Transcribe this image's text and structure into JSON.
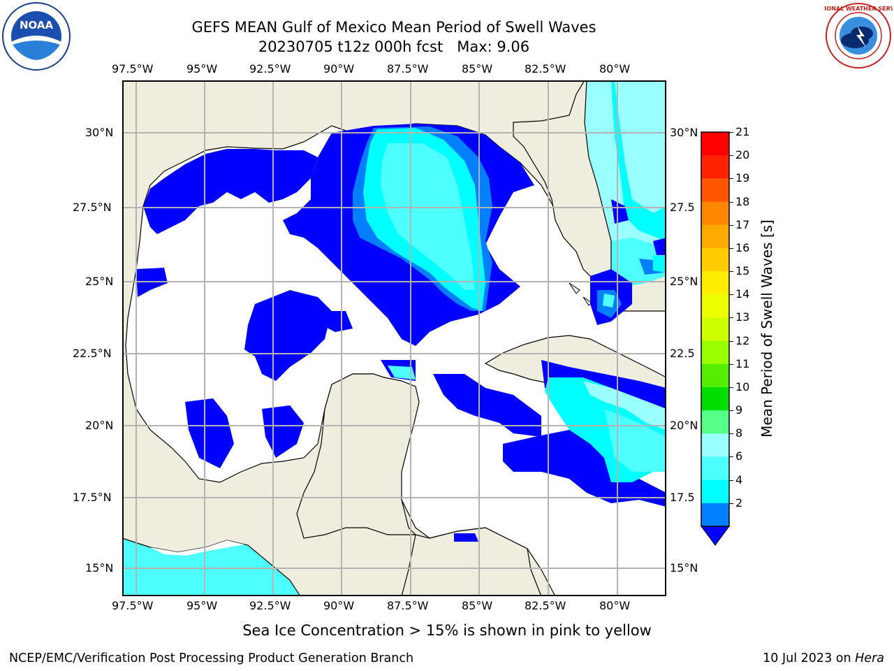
{
  "header": {
    "title_line1": "GEFS MEAN Gulf of Mexico Mean Period of Swell Waves",
    "title_line2": "20230705 t12z 000h fcst   Max: 9.06"
  },
  "logos": {
    "noaa_text": "NOAA",
    "noaa_ring": "NATIONAL OCEANIC AND ATMOSPHERIC ADMINISTRATION · U.S. DEPARTMENT OF COMMERCE",
    "nws_ring": "NATIONAL WEATHER SERVICE"
  },
  "map": {
    "lon_labels": [
      "97.5°W",
      "95°W",
      "92.5°W",
      "90°W",
      "87.5°W",
      "85°W",
      "82.5°W",
      "80°W"
    ],
    "lat_labels_left": [
      "30°N",
      "27.5°N",
      "25°N",
      "22.5°N",
      "20°N",
      "17.5°N",
      "15°N"
    ],
    "lat_labels_right": [
      "30°N",
      "27.5",
      "25°N",
      "22.5",
      "20°N",
      "17.5",
      "15°N"
    ],
    "colors": {
      "land": "#efedde",
      "ocean": "#ffffff",
      "grid": "#b3b3b3",
      "blue": "#0000ff",
      "mid_blue": "#0080ff",
      "cyan": "#00ffff",
      "aqua": "#4dffff",
      "light_aqua": "#99ffff"
    }
  },
  "colorbar": {
    "label": "Mean Period of Swell Waves [s]",
    "ticks": [
      "21",
      "20",
      "19",
      "18",
      "17",
      "16",
      "15",
      "14",
      "13",
      "12",
      "11",
      "10",
      "9",
      "8",
      "6",
      "4",
      "2"
    ],
    "colors": [
      "#ff0000",
      "#ff2200",
      "#ff5500",
      "#ff8800",
      "#ffaa00",
      "#ffcc00",
      "#ffee00",
      "#eeff00",
      "#ccff00",
      "#99ff00",
      "#55ee00",
      "#00dd00",
      "#55ff88",
      "#99ffff",
      "#4dffff",
      "#00ffff",
      "#0080ff"
    ],
    "extend_color": "#0000ff"
  },
  "notes": {
    "sea_ice": "Sea Ice Concentration > 15% is shown in pink to yellow"
  },
  "footer": {
    "left": "NCEP/EMC/Verification Post Processing Product Generation Branch",
    "date": "10 Jul 2023 on",
    "machine": "Hera"
  }
}
